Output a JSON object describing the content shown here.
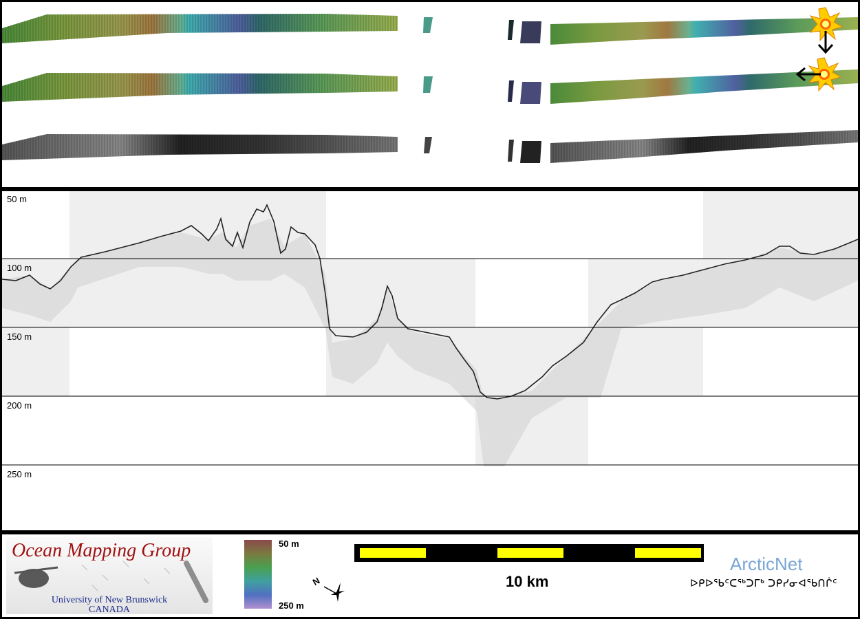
{
  "profile": {
    "depth_labels": [
      "50 m",
      "100 m",
      "150 m",
      "200 m",
      "250 m"
    ]
  },
  "logo": {
    "title": "Ocean Mapping Group",
    "university": "University of New Brunswick",
    "country": "CANADA"
  },
  "colorbar": {
    "top_label": "50 m",
    "bottom_label": "250 m"
  },
  "scalebar": {
    "label": "10 km",
    "colors": [
      "#ffff00",
      "#000000"
    ]
  },
  "arcticnet": {
    "title": "ArcticNet",
    "subtitle": "ᐅᑭᐅᖃᑦᑕᖅᑐᒥᒃ ᑐᑭᓯᓂᐊᖃᑎᒌᑦ"
  },
  "icons": [
    "explosion-icon",
    "down-arrow-icon",
    "left-arrow-icon",
    "north-arrow-icon"
  ]
}
